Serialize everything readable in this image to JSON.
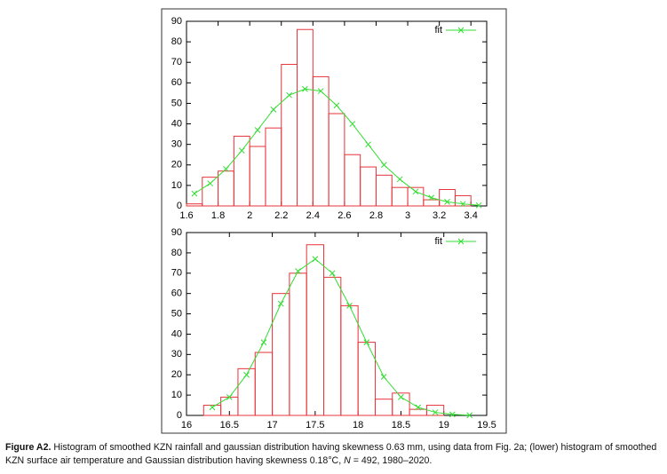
{
  "chart_data": [
    {
      "type": "histogram",
      "bins": [
        1.6,
        1.7,
        1.8,
        1.9,
        2.0,
        2.1,
        2.2,
        2.3,
        2.4,
        2.5,
        2.6,
        2.7,
        2.8,
        2.9,
        3.0,
        3.1,
        3.2,
        3.3,
        3.4
      ],
      "counts": [
        1,
        14,
        17,
        34,
        29,
        38,
        69,
        86,
        63,
        45,
        25,
        19,
        15,
        9,
        9,
        3,
        8,
        5
      ],
      "color": "#e8333a",
      "series": [
        {
          "name": "fit",
          "color": "#33dd33",
          "x": [
            1.65,
            1.75,
            1.85,
            1.95,
            2.05,
            2.15,
            2.25,
            2.35,
            2.45,
            2.55,
            2.65,
            2.75,
            2.85,
            2.95,
            3.05,
            3.15,
            3.25,
            3.35,
            3.45
          ],
          "values": [
            6,
            11,
            18,
            27,
            37,
            47,
            54,
            57,
            56,
            49,
            40,
            30,
            20,
            13,
            7,
            4,
            2,
            1,
            0.3
          ]
        }
      ],
      "xlim": [
        1.6,
        3.5
      ],
      "xticks": [
        1.6,
        1.8,
        2,
        2.2,
        2.4,
        2.6,
        2.8,
        3,
        3.2,
        3.4
      ],
      "ylim": [
        0,
        90
      ],
      "yticks": [
        0,
        10,
        20,
        30,
        40,
        50,
        60,
        70,
        80,
        90
      ],
      "legend": "top-right"
    },
    {
      "type": "histogram",
      "bins": [
        16.2,
        16.4,
        16.6,
        16.8,
        17.0,
        17.2,
        17.4,
        17.6,
        17.8,
        18.0,
        18.2,
        18.4,
        18.6,
        18.8,
        19.0
      ],
      "counts": [
        5,
        9,
        23,
        31,
        60,
        70,
        84,
        68,
        54,
        36,
        8,
        11,
        3,
        5
      ],
      "color": "#e8333a",
      "series": [
        {
          "name": "fit",
          "color": "#33dd33",
          "x": [
            16.3,
            16.5,
            16.7,
            16.9,
            17.1,
            17.3,
            17.5,
            17.7,
            17.9,
            18.1,
            18.3,
            18.5,
            18.7,
            18.9,
            19.1,
            19.3
          ],
          "values": [
            4,
            9,
            20,
            36,
            55,
            71,
            77,
            70,
            54,
            36,
            19,
            9,
            4,
            1.5,
            0.5,
            0.1
          ]
        }
      ],
      "xlim": [
        16,
        19.5
      ],
      "xticks": [
        16,
        16.5,
        17,
        17.5,
        18,
        18.5,
        19,
        19.5
      ],
      "ylim": [
        0,
        90
      ],
      "yticks": [
        0,
        10,
        20,
        30,
        40,
        50,
        60,
        70,
        80,
        90
      ],
      "legend": "top-right"
    }
  ],
  "caption": {
    "label": "Figure A2.",
    "parts": [
      " Histogram of smoothed KZN rainfall and gaussian distribution having skewness 0.63 mm, using data from Fig. 2a; (lower) histogram of smoothed KZN surface air temperature and Gaussian distribution having skewness 0.18°C, ",
      "N",
      " = 492, 1980–2020."
    ]
  }
}
